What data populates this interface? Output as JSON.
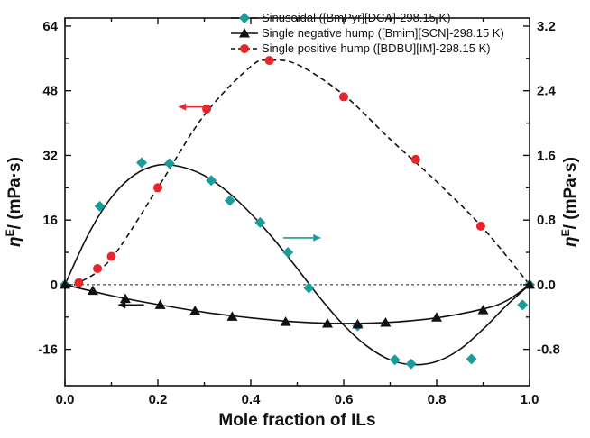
{
  "chart_data": {
    "type": "scatter",
    "xlabel": "Mole fraction of ILs",
    "ylabel_left": "η",
    "ylabel_left_sup": "E",
    "ylabel_left_unit": "/ (mPa·s)",
    "ylabel_right": "η",
    "ylabel_right_sup": "E",
    "ylabel_right_unit": "/ (mPa·s)",
    "xlim": [
      0.0,
      1.0
    ],
    "ylim_left": [
      -25,
      66
    ],
    "ylim_right": [
      -1.25,
      3.3
    ],
    "x_ticks": [
      "0.0",
      "0.2",
      "0.4",
      "0.6",
      "0.8",
      "1.0"
    ],
    "x_tick_values": [
      0.0,
      0.2,
      0.4,
      0.6,
      0.8,
      1.0
    ],
    "y_left_ticks": [
      "-16",
      "0",
      "16",
      "32",
      "48",
      "64"
    ],
    "y_left_tick_values": [
      -16,
      0,
      16,
      32,
      48,
      64
    ],
    "y_right_ticks": [
      "-0.8",
      "0.0",
      "0.8",
      "1.6",
      "2.4",
      "3.2"
    ],
    "y_right_tick_values": [
      -0.8,
      0.0,
      0.8,
      1.6,
      2.4,
      3.2
    ],
    "zero_line": true,
    "legend_position": "top-right",
    "series": [
      {
        "name": "Sinusoidal ([BmPyr][DCA]-298.15 K)",
        "axis": "right",
        "marker": "diamond",
        "color": "#1a9c9c",
        "line": "solid",
        "x": [
          0.0,
          0.075,
          0.165,
          0.225,
          0.315,
          0.355,
          0.42,
          0.48,
          0.525,
          0.63,
          0.71,
          0.745,
          0.875,
          0.985,
          1.0
        ],
        "y": [
          0.0,
          0.97,
          1.51,
          1.5,
          1.29,
          1.04,
          0.77,
          0.4,
          -0.04,
          -0.51,
          -0.93,
          -0.98,
          -0.92,
          -0.25,
          0.0
        ],
        "curve_x": [
          0.0,
          0.05,
          0.1,
          0.15,
          0.2,
          0.25,
          0.3,
          0.35,
          0.4,
          0.45,
          0.5,
          0.55,
          0.6,
          0.65,
          0.7,
          0.75,
          0.8,
          0.85,
          0.9,
          0.95,
          1.0
        ],
        "curve_y": [
          0.0,
          0.62,
          1.08,
          1.36,
          1.48,
          1.46,
          1.35,
          1.15,
          0.88,
          0.56,
          0.2,
          -0.17,
          -0.5,
          -0.76,
          -0.93,
          -0.99,
          -0.95,
          -0.8,
          -0.55,
          -0.26,
          0.0
        ]
      },
      {
        "name": "Single negative hump ([Bmim][SCN]-298.15 K)",
        "axis": "left",
        "marker": "triangle",
        "color": "#111111",
        "line": "solid",
        "x": [
          0.0,
          0.06,
          0.13,
          0.205,
          0.28,
          0.36,
          0.475,
          0.565,
          0.63,
          0.69,
          0.8,
          0.9,
          1.0
        ],
        "y": [
          0.0,
          -1.5,
          -3.5,
          -5.0,
          -6.5,
          -7.9,
          -9.2,
          -9.6,
          -9.8,
          -9.4,
          -8.1,
          -6.3,
          0.0
        ],
        "curve_x": [
          0.0,
          0.1,
          0.2,
          0.3,
          0.4,
          0.5,
          0.6,
          0.7,
          0.8,
          0.9,
          0.95,
          1.0
        ],
        "curve_y": [
          0.0,
          -2.7,
          -4.9,
          -6.8,
          -8.2,
          -9.2,
          -9.6,
          -9.3,
          -8.2,
          -6.0,
          -4.0,
          0.0
        ]
      },
      {
        "name": "Single positive hump ([BDBU][IM]-298.15 K)",
        "axis": "left",
        "marker": "circle",
        "color": "#e8252a",
        "line": "dashed",
        "x": [
          0.03,
          0.07,
          0.1,
          0.2,
          0.305,
          0.44,
          0.6,
          0.755,
          0.895
        ],
        "y": [
          0.5,
          4.0,
          7.0,
          24.0,
          43.5,
          55.5,
          46.5,
          31.0,
          14.5
        ],
        "curve_x": [
          0.0,
          0.03,
          0.1,
          0.2,
          0.3,
          0.4,
          0.44,
          0.5,
          0.6,
          0.7,
          0.8,
          0.9,
          1.0
        ],
        "curve_y": [
          0.0,
          0.5,
          6.5,
          24.0,
          42.0,
          54.0,
          55.5,
          54.5,
          47.0,
          36.0,
          25.5,
          14.0,
          0.0
        ]
      }
    ],
    "annotations": [
      {
        "type": "arrow",
        "direction": "left",
        "color": "#e8252a",
        "points_to_axis": "left"
      },
      {
        "type": "arrow",
        "direction": "right",
        "color": "#1a9c9c",
        "points_to_axis": "right"
      },
      {
        "type": "arrow",
        "direction": "left",
        "color": "#111111",
        "points_to_axis": "left"
      }
    ]
  }
}
